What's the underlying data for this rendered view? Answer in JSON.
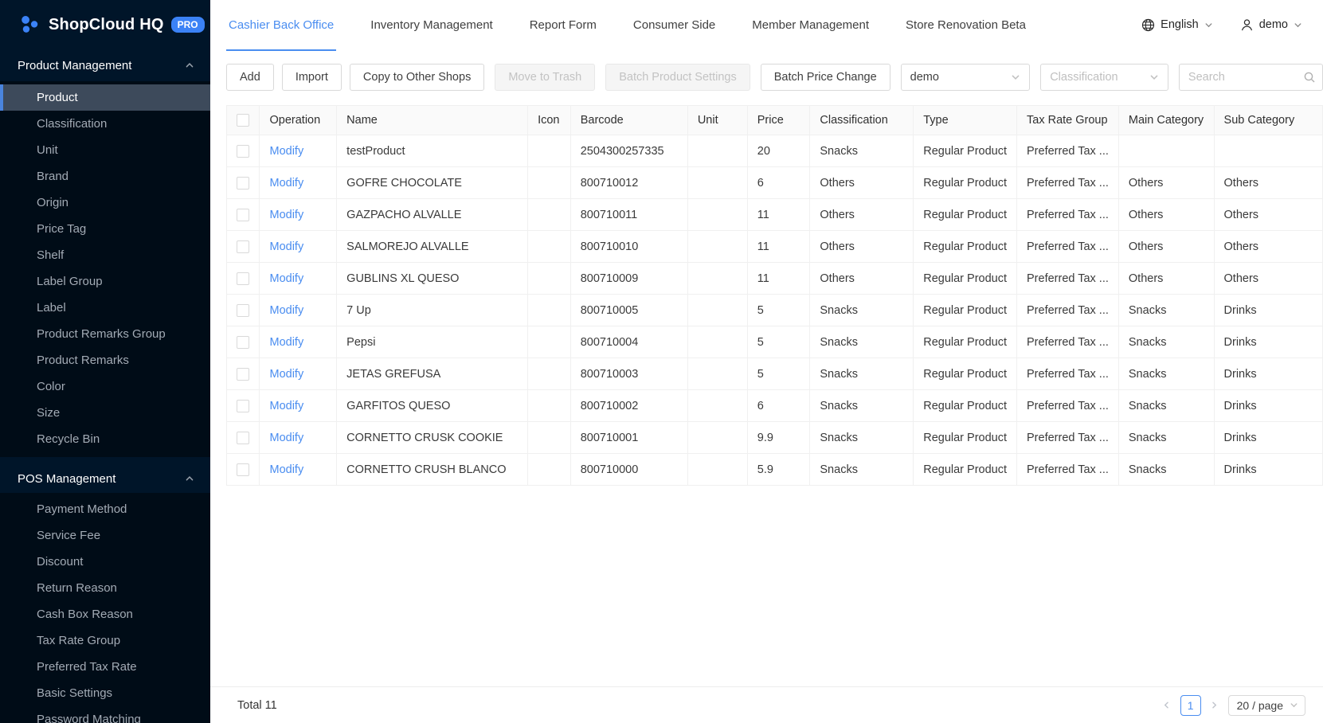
{
  "app": {
    "title": "ShopCloud HQ",
    "badge": "PRO"
  },
  "colors": {
    "accent_blue": "#4a8df0",
    "sidebar_bg": "#001529",
    "sidebar_submenu_bg": "#000c17",
    "selected_item_bg": "#3d4a5b",
    "selected_item_bar": "#4a84dd",
    "logo_badge_bg": "#3b82f6",
    "disabled_button_bg": "#f5f5f5",
    "table_border": "#f0f0f0"
  },
  "icons": {
    "logo": "dots-cluster-icon",
    "language": "globe-icon",
    "user": "user-icon",
    "search": "search-icon",
    "select_caret": "chevron-down-icon",
    "section_collapse": "chevron-up-icon",
    "pagination_prev": "chevron-left-icon",
    "pagination_next": "chevron-right-icon"
  },
  "sidebar": {
    "sections": [
      {
        "label": "Product Management",
        "active_item": "Product",
        "items": [
          "Product",
          "Classification",
          "Unit",
          "Brand",
          "Origin",
          "Price Tag",
          "Shelf",
          "Label Group",
          "Label",
          "Product Remarks Group",
          "Product Remarks",
          "Color",
          "Size",
          "Recycle Bin"
        ]
      },
      {
        "label": "POS Management",
        "active_item": "",
        "items": [
          "Payment Method",
          "Service Fee",
          "Discount",
          "Return Reason",
          "Cash Box Reason",
          "Tax Rate Group",
          "Preferred Tax Rate",
          "Basic Settings",
          "Password Matching"
        ]
      }
    ]
  },
  "topnav": {
    "tabs": [
      "Cashier Back Office",
      "Inventory Management",
      "Report Form",
      "Consumer Side",
      "Member Management",
      "Store Renovation Beta"
    ],
    "active_tab": "Cashier Back Office",
    "language_label": "English",
    "user_label": "demo"
  },
  "toolbar": {
    "buttons": [
      {
        "label": "Add",
        "disabled": false
      },
      {
        "label": "Import",
        "disabled": false
      },
      {
        "label": "Copy to Other Shops",
        "disabled": false
      },
      {
        "label": "Move to Trash",
        "disabled": true
      },
      {
        "label": "Batch Product Settings",
        "disabled": true
      },
      {
        "label": "Batch Price Change",
        "disabled": false
      }
    ],
    "shop_select_value": "demo",
    "classification_placeholder": "Classification",
    "search_placeholder": "Search"
  },
  "table": {
    "columns": [
      "Operation",
      "Name",
      "Icon",
      "Barcode",
      "Unit",
      "Price",
      "Classification",
      "Type",
      "Tax Rate Group",
      "Main Category",
      "Sub Category"
    ],
    "rows": [
      {
        "operation": "Modify",
        "name": "testProduct",
        "icon": "",
        "barcode": "2504300257335",
        "unit": "",
        "price": "20",
        "classification": "Snacks",
        "type": "Regular Product",
        "tax_rate_group": "Preferred Tax ...",
        "main_category": "",
        "sub_category": ""
      },
      {
        "operation": "Modify",
        "name": "GOFRE CHOCOLATE",
        "icon": "",
        "barcode": "800710012",
        "unit": "",
        "price": "6",
        "classification": "Others",
        "type": "Regular Product",
        "tax_rate_group": "Preferred Tax ...",
        "main_category": "Others",
        "sub_category": "Others"
      },
      {
        "operation": "Modify",
        "name": "GAZPACHO ALVALLE",
        "icon": "",
        "barcode": "800710011",
        "unit": "",
        "price": "11",
        "classification": "Others",
        "type": "Regular Product",
        "tax_rate_group": "Preferred Tax ...",
        "main_category": "Others",
        "sub_category": "Others"
      },
      {
        "operation": "Modify",
        "name": "SALMOREJO ALVALLE",
        "icon": "",
        "barcode": "800710010",
        "unit": "",
        "price": "11",
        "classification": "Others",
        "type": "Regular Product",
        "tax_rate_group": "Preferred Tax ...",
        "main_category": "Others",
        "sub_category": "Others"
      },
      {
        "operation": "Modify",
        "name": "GUBLINS XL QUESO",
        "icon": "",
        "barcode": "800710009",
        "unit": "",
        "price": "11",
        "classification": "Others",
        "type": "Regular Product",
        "tax_rate_group": "Preferred Tax ...",
        "main_category": "Others",
        "sub_category": "Others"
      },
      {
        "operation": "Modify",
        "name": "7 Up",
        "icon": "",
        "barcode": "800710005",
        "unit": "",
        "price": "5",
        "classification": "Snacks",
        "type": "Regular Product",
        "tax_rate_group": "Preferred Tax ...",
        "main_category": "Snacks",
        "sub_category": "Drinks"
      },
      {
        "operation": "Modify",
        "name": "Pepsi",
        "icon": "",
        "barcode": "800710004",
        "unit": "",
        "price": "5",
        "classification": "Snacks",
        "type": "Regular Product",
        "tax_rate_group": "Preferred Tax ...",
        "main_category": "Snacks",
        "sub_category": "Drinks"
      },
      {
        "operation": "Modify",
        "name": "JETAS GREFUSA",
        "icon": "",
        "barcode": "800710003",
        "unit": "",
        "price": "5",
        "classification": "Snacks",
        "type": "Regular Product",
        "tax_rate_group": "Preferred Tax ...",
        "main_category": "Snacks",
        "sub_category": "Drinks"
      },
      {
        "operation": "Modify",
        "name": "GARFITOS QUESO",
        "icon": "",
        "barcode": "800710002",
        "unit": "",
        "price": "6",
        "classification": "Snacks",
        "type": "Regular Product",
        "tax_rate_group": "Preferred Tax ...",
        "main_category": "Snacks",
        "sub_category": "Drinks"
      },
      {
        "operation": "Modify",
        "name": "CORNETTO CRUSK COOKIE",
        "icon": "",
        "barcode": "800710001",
        "unit": "",
        "price": "9.9",
        "classification": "Snacks",
        "type": "Regular Product",
        "tax_rate_group": "Preferred Tax ...",
        "main_category": "Snacks",
        "sub_category": "Drinks"
      },
      {
        "operation": "Modify",
        "name": "CORNETTO CRUSH BLANCO",
        "icon": "",
        "barcode": "800710000",
        "unit": "",
        "price": "5.9",
        "classification": "Snacks",
        "type": "Regular Product",
        "tax_rate_group": "Preferred Tax ...",
        "main_category": "Snacks",
        "sub_category": "Drinks"
      }
    ]
  },
  "footer": {
    "total_label": "Total 11",
    "current_page": "1",
    "page_size_label": "20 / page"
  }
}
